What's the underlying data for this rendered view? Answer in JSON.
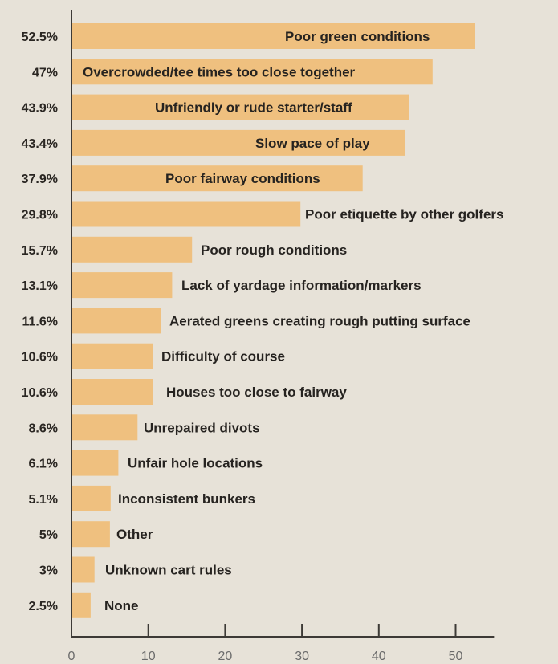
{
  "colors": {
    "background": "#e7e2d8",
    "bar": "#efc07f",
    "axis": "#3d3a36",
    "text": "#262320",
    "tick_text": "#6b6b6b"
  },
  "chart_data": {
    "type": "bar",
    "orientation": "horizontal",
    "title": "",
    "xlabel": "",
    "ylabel": "",
    "xlim": [
      0,
      55
    ],
    "x_ticks": [
      0,
      10,
      20,
      30,
      40,
      50
    ],
    "grid": false,
    "categories": [
      "Poor green conditions",
      "Overcrowded/tee times too close together",
      "Unfriendly or rude starter/staff",
      "Slow pace of play",
      "Poor fairway conditions",
      "Poor etiquette by other golfers",
      "Poor rough conditions",
      "Lack of yardage information/markers",
      "Aerated greens creating rough putting surface",
      "Difficulty of course",
      "Houses too close to fairway",
      "Unrepaired divots",
      "Unfair hole locations",
      "Inconsistent bunkers",
      "Other",
      "Unknown cart rules",
      "None"
    ],
    "values": [
      52.5,
      47,
      43.9,
      43.4,
      37.9,
      29.8,
      15.7,
      13.1,
      11.6,
      10.6,
      10.6,
      8.6,
      6.1,
      5.1,
      5,
      3,
      2.5
    ],
    "value_labels": [
      "52.5%",
      "47%",
      "43.9%",
      "43.4%",
      "37.9%",
      "29.8%",
      "15.7%",
      "13.1%",
      "11.6%",
      "10.6%",
      "10.6%",
      "8.6%",
      "6.1%",
      "5.1%",
      "5%",
      "3%",
      "2.5%"
    ]
  }
}
